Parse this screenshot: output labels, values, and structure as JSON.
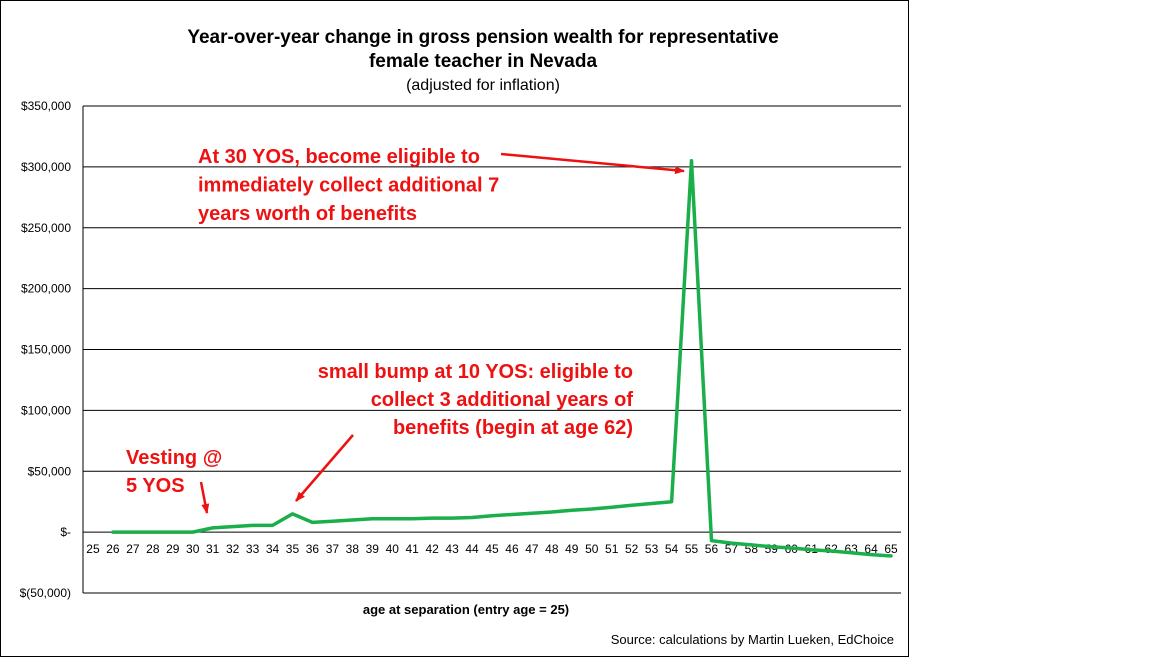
{
  "chart_data": {
    "type": "line",
    "title_lines": [
      "Year-over-year change in gross pension wealth  for representative",
      "female teacher in Nevada"
    ],
    "subtitle": "(adjusted for inflation)",
    "xlabel": "age at separation (entry  age = 25)",
    "ylabel": "",
    "ylim": [
      -50000,
      350000
    ],
    "yticks": [
      -50000,
      0,
      50000,
      100000,
      150000,
      200000,
      250000,
      300000,
      350000
    ],
    "ytick_labels": [
      "$(50,000)",
      "$-",
      "$50,000",
      "$100,000",
      "$150,000",
      "$200,000",
      "$250,000",
      "$300,000",
      "$350,000"
    ],
    "categories": [
      "25",
      "26",
      "27",
      "28",
      "29",
      "30",
      "31",
      "32",
      "33",
      "34",
      "35",
      "36",
      "37",
      "38",
      "39",
      "40",
      "41",
      "42",
      "43",
      "44",
      "45",
      "46",
      "47",
      "48",
      "49",
      "50",
      "51",
      "52",
      "53",
      "54",
      "55",
      "56",
      "57",
      "58",
      "59",
      "60",
      "61",
      "62",
      "63",
      "64",
      "65"
    ],
    "grid": "horizontal",
    "series": [
      {
        "color": "#1aaf4b",
        "x": [
          "26",
          "27",
          "28",
          "29",
          "30",
          "31",
          "32",
          "33",
          "34",
          "35",
          "36",
          "37",
          "38",
          "39",
          "40",
          "41",
          "42",
          "43",
          "44",
          "45",
          "46",
          "47",
          "48",
          "49",
          "50",
          "51",
          "52",
          "53",
          "54",
          "55",
          "56",
          "57",
          "58",
          "59",
          "60",
          "61",
          "62",
          "63",
          "64",
          "65"
        ],
        "values": [
          0,
          0,
          0,
          0,
          0,
          3500,
          4500,
          5500,
          5500,
          15000,
          8000,
          9000,
          10000,
          11000,
          11000,
          11000,
          11500,
          11500,
          12000,
          13500,
          14500,
          15500,
          16500,
          18000,
          19000,
          20500,
          22000,
          23500,
          25000,
          305000,
          -7000,
          -9000,
          -10500,
          -12000,
          -13000,
          -14500,
          -15500,
          -17000,
          -18500,
          -19500
        ]
      }
    ],
    "annotations": [
      {
        "lines": [
          "At 30 YOS, become eligible to",
          "immediately collect additional 7",
          "years worth of benefits"
        ],
        "color": "#ee1111",
        "points_to": "55"
      },
      {
        "lines": [
          "small bump at 10 YOS: eligible to",
          "collect 3 additional years of",
          "benefits (begin at age 62)"
        ],
        "color": "#ee1111",
        "points_to": "35"
      },
      {
        "lines": [
          "Vesting @",
          "5 YOS"
        ],
        "color": "#ee1111",
        "points_to": "30"
      }
    ],
    "source": "Source: calculations by Martin Lueken, EdChoice"
  }
}
